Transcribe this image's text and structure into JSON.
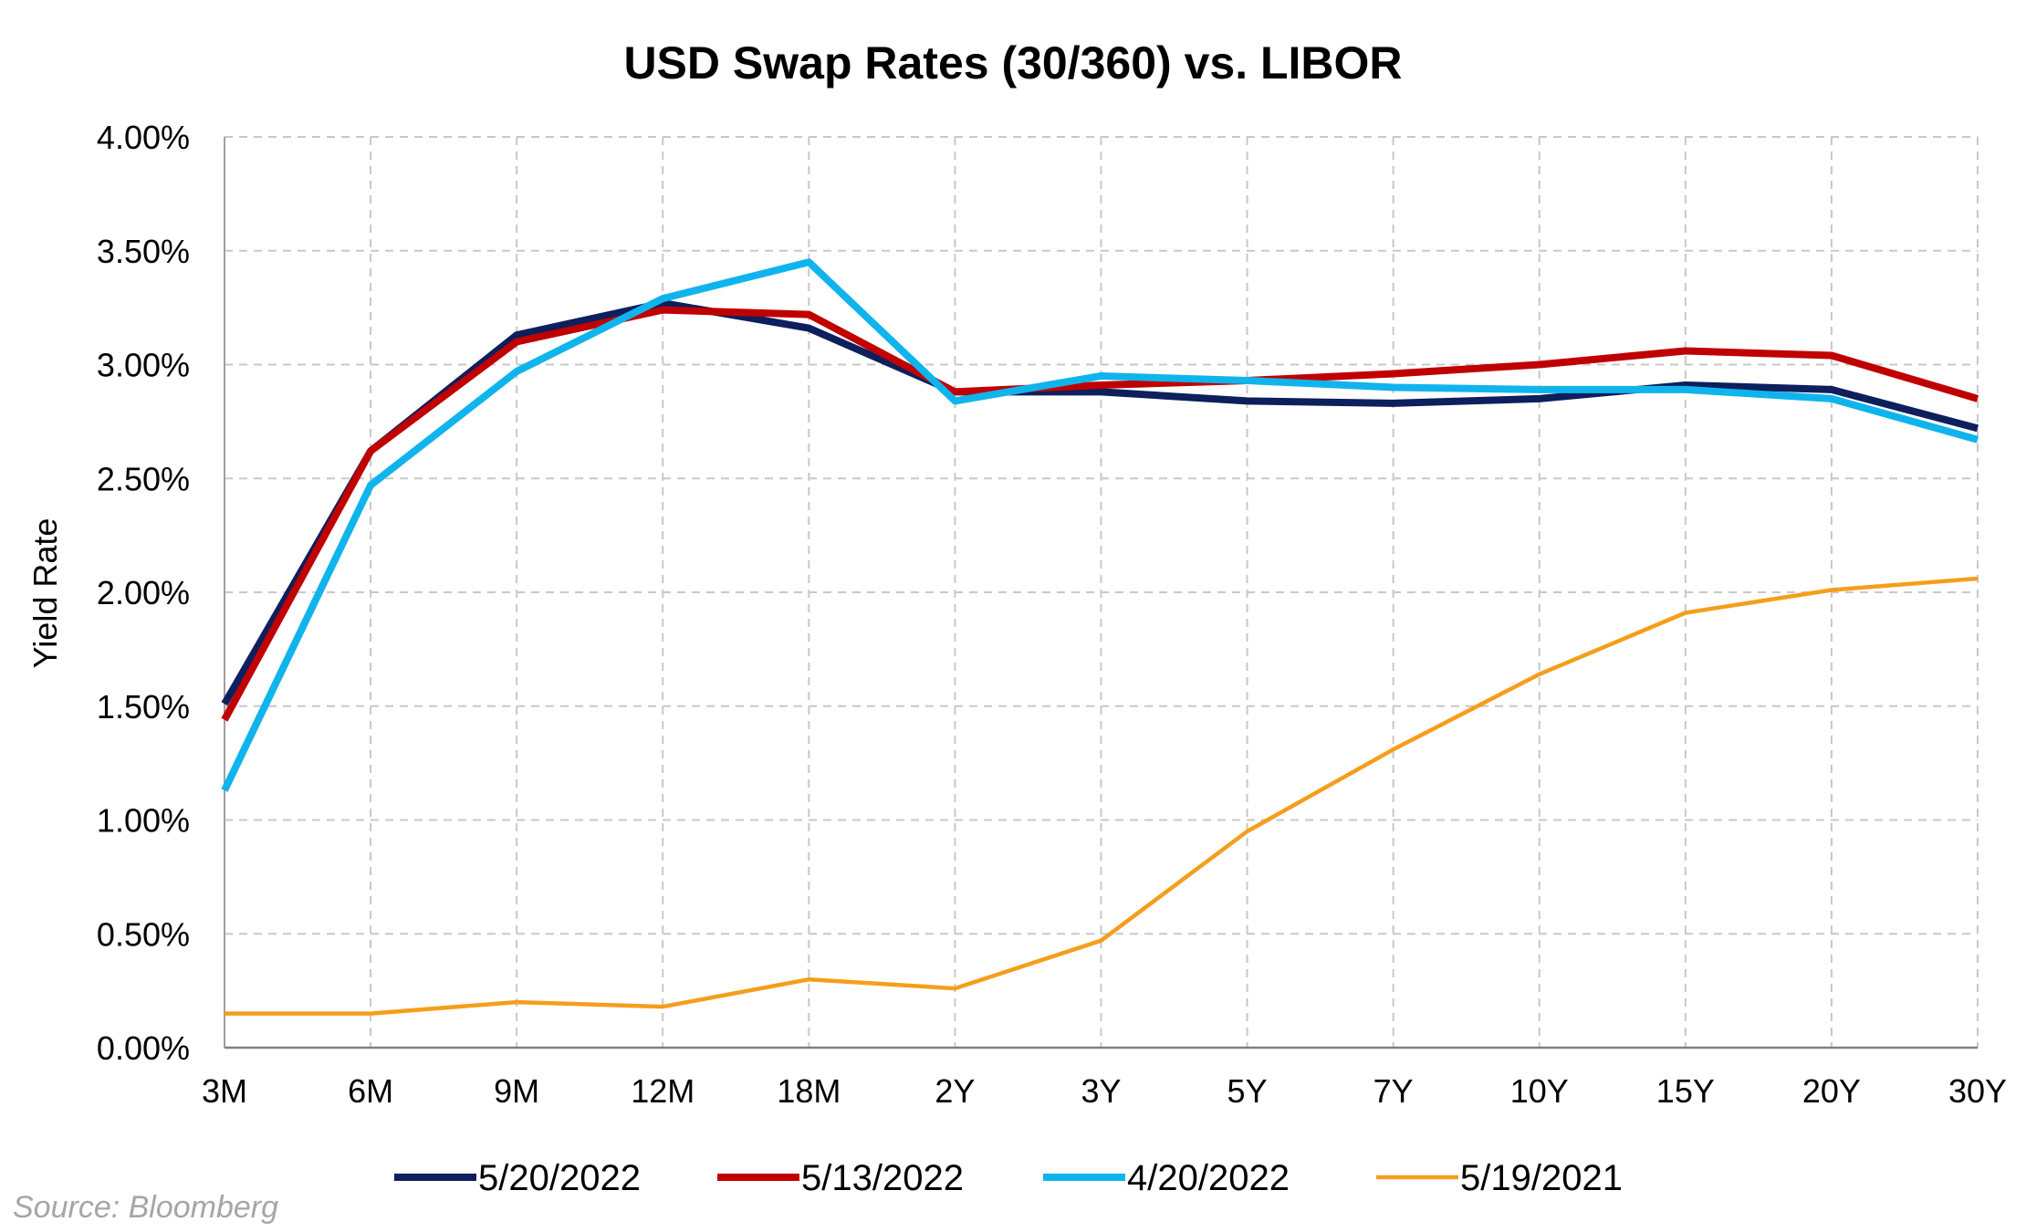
{
  "chart_data": {
    "type": "line",
    "title": "USD Swap Rates (30/360) vs. LIBOR",
    "ylabel": "Yield Rate",
    "xlabel": "",
    "categories": [
      "3M",
      "6M",
      "9M",
      "12M",
      "18M",
      "2Y",
      "3Y",
      "5Y",
      "7Y",
      "10Y",
      "15Y",
      "20Y",
      "30Y"
    ],
    "ylim": [
      0,
      4
    ],
    "yticks": [
      "0.00%",
      "0.50%",
      "1.00%",
      "1.50%",
      "2.00%",
      "2.50%",
      "3.00%",
      "3.50%",
      "4.00%"
    ],
    "grid": true,
    "legend_position": "bottom",
    "series": [
      {
        "name": "5/20/2022",
        "color": "#0d1f5c",
        "values": [
          1.51,
          2.62,
          3.13,
          3.27,
          3.16,
          2.88,
          2.88,
          2.84,
          2.83,
          2.85,
          2.91,
          2.89,
          2.72
        ]
      },
      {
        "name": "5/13/2022",
        "color": "#c00000",
        "values": [
          1.44,
          2.62,
          3.1,
          3.24,
          3.22,
          2.88,
          2.91,
          2.93,
          2.96,
          3.0,
          3.06,
          3.04,
          2.85
        ]
      },
      {
        "name": "4/20/2022",
        "color": "#10b4ec",
        "values": [
          1.13,
          2.47,
          2.97,
          3.29,
          3.45,
          2.84,
          2.95,
          2.93,
          2.9,
          2.89,
          2.89,
          2.85,
          2.67
        ]
      },
      {
        "name": "5/19/2021",
        "color": "#f59e1b",
        "values": [
          0.15,
          0.15,
          0.2,
          0.18,
          0.3,
          0.26,
          0.47,
          0.95,
          1.31,
          1.64,
          1.91,
          2.01,
          2.06
        ]
      }
    ]
  },
  "source": "Source: Bloomberg"
}
